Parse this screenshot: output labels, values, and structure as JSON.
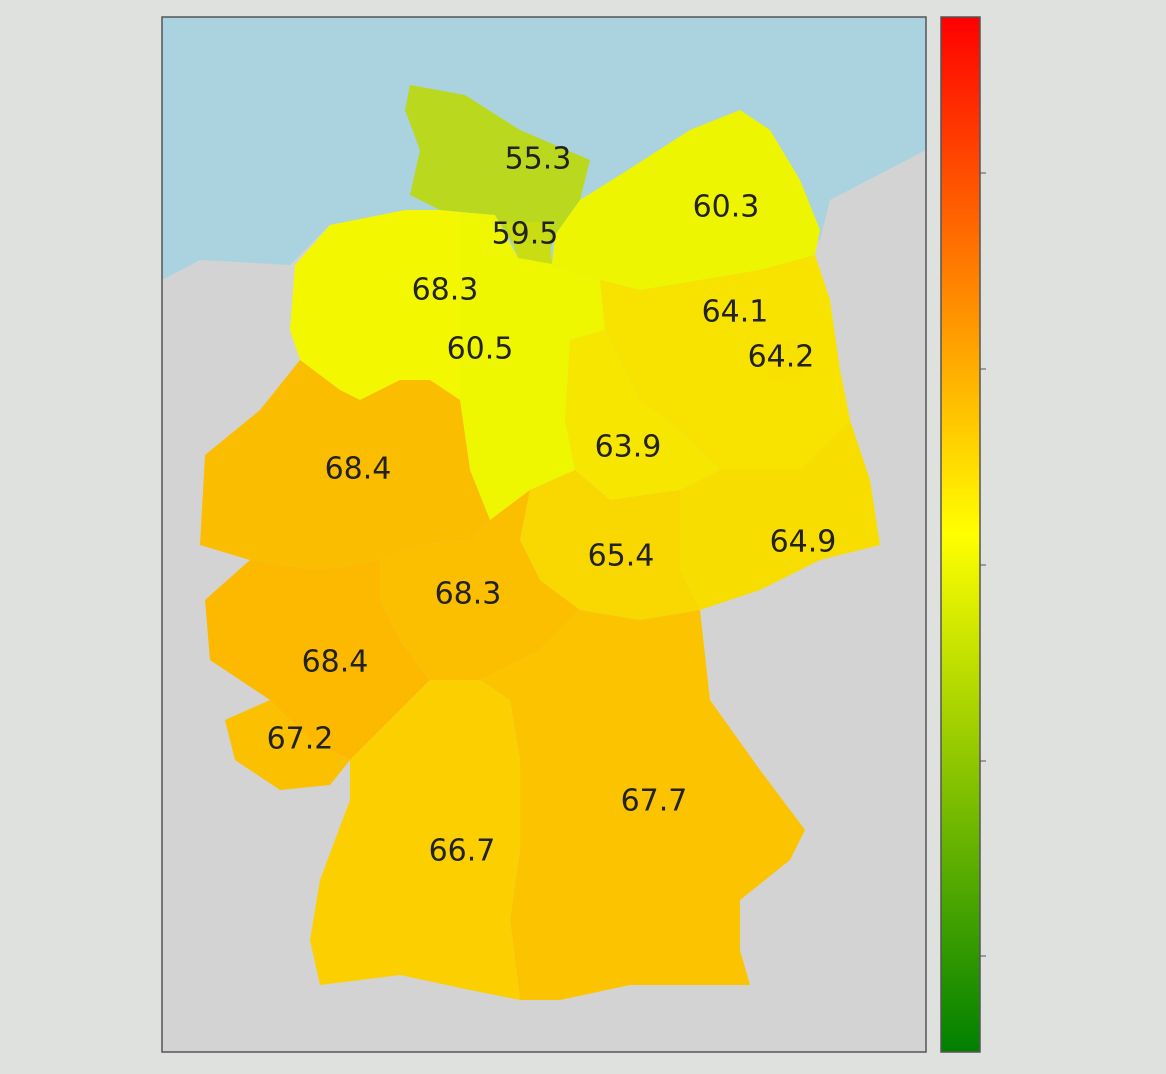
{
  "map": {
    "regions": [
      {
        "value": 55.3,
        "color": "#b9d81e"
      },
      {
        "value": 59.5,
        "color": "#c9dd12"
      },
      {
        "value": 60.3,
        "color": "#eef500"
      },
      {
        "value": 68.3,
        "color": "#f3f800"
      },
      {
        "value": 60.5,
        "color": "#eef700"
      },
      {
        "value": 64.1,
        "color": "#f8e200"
      },
      {
        "value": 64.2,
        "color": "#f8e100"
      },
      {
        "value": 63.9,
        "color": "#f6e600"
      },
      {
        "value": 68.4,
        "color": "#fbbd00"
      },
      {
        "value": 64.9,
        "color": "#f8dd00"
      },
      {
        "value": 65.4,
        "color": "#f9d700"
      },
      {
        "value": 68.3,
        "color": "#fcbf00"
      },
      {
        "value": 68.4,
        "color": "#fcb900"
      },
      {
        "value": 67.2,
        "color": "#fbc000"
      },
      {
        "value": 67.7,
        "color": "#fbc300"
      },
      {
        "value": 66.7,
        "color": "#fccf00"
      }
    ]
  }
}
